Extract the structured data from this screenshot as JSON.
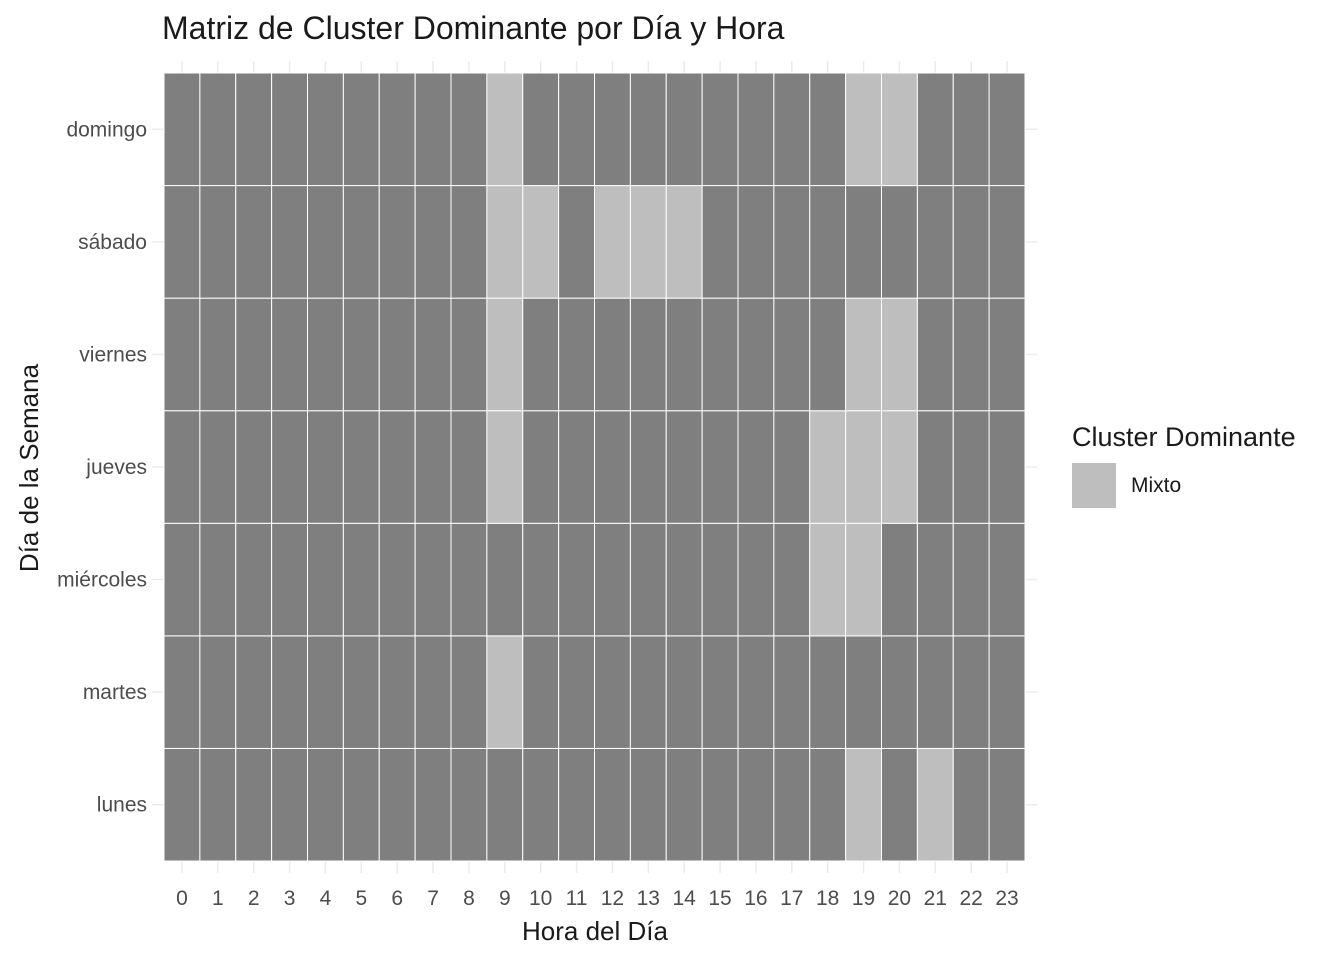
{
  "chart_data": {
    "type": "heatmap",
    "title": "Matriz de Cluster Dominante por Día y Hora",
    "xlabel": "Hora del Día",
    "ylabel": "Día de la Semana",
    "x_categories": [
      "0",
      "1",
      "2",
      "3",
      "4",
      "5",
      "6",
      "7",
      "8",
      "9",
      "10",
      "11",
      "12",
      "13",
      "14",
      "15",
      "16",
      "17",
      "18",
      "19",
      "20",
      "21",
      "22",
      "23"
    ],
    "y_categories": [
      "lunes",
      "martes",
      "miércoles",
      "jueves",
      "viernes",
      "sábado",
      "domingo"
    ],
    "legend": {
      "title": "Cluster Dominante",
      "placement": "right",
      "items": [
        {
          "label": "Mixto",
          "color": "#bebebe"
        }
      ]
    },
    "default_color": "#7f7f7f",
    "grid": true,
    "cells": [
      {
        "day": "domingo",
        "hours": [
          9,
          19,
          20
        ],
        "cluster": "Mixto"
      },
      {
        "day": "sábado",
        "hours": [
          9,
          10,
          12,
          13,
          14
        ],
        "cluster": "Mixto"
      },
      {
        "day": "viernes",
        "hours": [
          9,
          19,
          20
        ],
        "cluster": "Mixto"
      },
      {
        "day": "jueves",
        "hours": [
          9,
          18,
          19,
          20
        ],
        "cluster": "Mixto"
      },
      {
        "day": "miércoles",
        "hours": [
          18,
          19
        ],
        "cluster": "Mixto"
      },
      {
        "day": "martes",
        "hours": [
          9
        ],
        "cluster": "Mixto"
      },
      {
        "day": "lunes",
        "hours": [
          19,
          21
        ],
        "cluster": "Mixto"
      }
    ]
  }
}
